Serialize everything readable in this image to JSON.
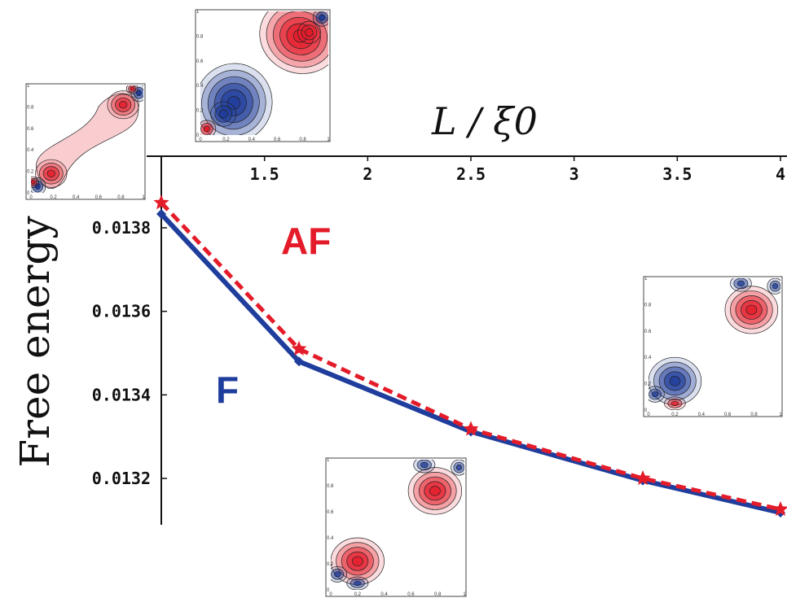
{
  "chart_data": {
    "type": "line",
    "xlabel": "L / ξ0",
    "ylabel": "Free energy",
    "x_ticks": [
      "1.5",
      "2",
      "2.5",
      "3",
      "3.5",
      "4"
    ],
    "y_ticks": [
      "0.0138",
      "0.0136",
      "0.0134",
      "0.0132"
    ],
    "xlim": [
      1.0,
      4.0
    ],
    "ylim": [
      0.0131,
      0.01386
    ],
    "x_axis_position": "top",
    "grid": false,
    "series": [
      {
        "name": "AF",
        "color": "#e41c2a",
        "style": "dashed",
        "marker": "star",
        "x": [
          1.0,
          1.667,
          2.5,
          3.333,
          4.0
        ],
        "y": [
          0.01386,
          0.01351,
          0.013318,
          0.0132,
          0.013126
        ]
      },
      {
        "name": "F",
        "color": "#1f3d9c",
        "style": "solid",
        "marker": "diamond",
        "x": [
          1.0,
          1.667,
          2.5,
          3.333,
          4.0
        ],
        "y": [
          0.013833,
          0.01348,
          0.013312,
          0.013195,
          0.013118
        ]
      }
    ],
    "inset_tick_labels": {
      "x": [
        "0",
        "0.2",
        "0.4",
        "0.6",
        "0.8",
        "1"
      ],
      "y": [
        "0",
        "0.2",
        "0.4",
        "0.6",
        "0.8",
        "1"
      ]
    },
    "insets": [
      {
        "id": "inset-left",
        "pattern": "af-elongated"
      },
      {
        "id": "inset-top",
        "pattern": "af-strong"
      },
      {
        "id": "inset-right",
        "pattern": "f-separated"
      },
      {
        "id": "inset-bottom",
        "pattern": "f-separated"
      }
    ]
  },
  "colors": {
    "positive": "#e41c2a",
    "negative": "#1f3d9c",
    "axis": "#111111"
  }
}
